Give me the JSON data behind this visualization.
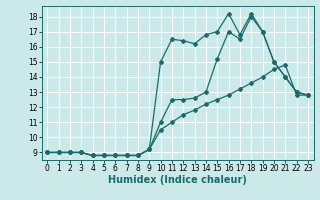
{
  "xlabel": "Humidex (Indice chaleur)",
  "bg_color": "#cce9e9",
  "grid_color": "#ffffff",
  "line_color": "#1a6b6b",
  "xlim": [
    -0.5,
    23.5
  ],
  "ylim": [
    8.5,
    18.7
  ],
  "xticks": [
    0,
    1,
    2,
    3,
    4,
    5,
    6,
    7,
    8,
    9,
    10,
    11,
    12,
    13,
    14,
    15,
    16,
    17,
    18,
    19,
    20,
    21,
    22,
    23
  ],
  "yticks": [
    9,
    10,
    11,
    12,
    13,
    14,
    15,
    16,
    17,
    18
  ],
  "series1_x": [
    0,
    1,
    2,
    3,
    4,
    5,
    6,
    7,
    8,
    9,
    10,
    11,
    12,
    13,
    14,
    15,
    16,
    17,
    18,
    19,
    20,
    21,
    22,
    23
  ],
  "series1_y": [
    9,
    9,
    9,
    9,
    8.8,
    8.8,
    8.8,
    8.8,
    8.8,
    9.2,
    15,
    16.5,
    16.4,
    16.2,
    16.8,
    17,
    18.2,
    16.8,
    18.2,
    17,
    15,
    14,
    13,
    12.8
  ],
  "series2_x": [
    0,
    1,
    2,
    3,
    4,
    5,
    6,
    7,
    8,
    9,
    10,
    11,
    12,
    13,
    14,
    15,
    16,
    17,
    18,
    19,
    20,
    21,
    22,
    23
  ],
  "series2_y": [
    9,
    9,
    9,
    9,
    8.8,
    8.8,
    8.8,
    8.8,
    8.8,
    9.2,
    11,
    12.5,
    12.5,
    12.6,
    13.0,
    15.2,
    17.0,
    16.5,
    18.0,
    17.0,
    15,
    14,
    13,
    12.8
  ],
  "series3_x": [
    0,
    1,
    2,
    3,
    4,
    5,
    6,
    7,
    8,
    9,
    10,
    11,
    12,
    13,
    14,
    15,
    16,
    17,
    18,
    19,
    20,
    21,
    22,
    23
  ],
  "series3_y": [
    9,
    9,
    9,
    9,
    8.8,
    8.8,
    8.8,
    8.8,
    8.8,
    9.2,
    10.5,
    11.0,
    11.5,
    11.8,
    12.2,
    12.5,
    12.8,
    13.2,
    13.6,
    14.0,
    14.5,
    14.8,
    12.8,
    12.8
  ],
  "tick_fontsize": 5.5,
  "xlabel_fontsize": 7,
  "marker_size": 2.0,
  "linewidth": 0.9
}
